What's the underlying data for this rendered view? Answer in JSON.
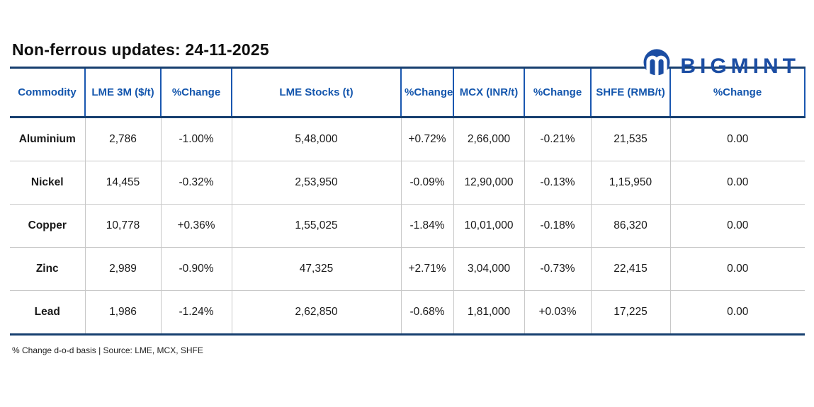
{
  "logo": {
    "text": "BIGMINT"
  },
  "title": "Non-ferrous updates: 24-11-2025",
  "table": {
    "headers": [
      "Commodity",
      "LME 3M ($/t)",
      "%Change",
      "LME Stocks (t)",
      "%Change",
      "MCX (INR/t)",
      "%Change",
      "SHFE (RMB/t)",
      "%Change"
    ],
    "rows": [
      {
        "commodity": "Aluminium",
        "cells": [
          {
            "text": "2,786",
            "tone": "plain"
          },
          {
            "text": "-1.00%",
            "tone": "neg"
          },
          {
            "text": "5,48,000",
            "tone": "plain"
          },
          {
            "text": "+0.72%",
            "tone": "pos"
          },
          {
            "text": "2,66,000",
            "tone": "plain"
          },
          {
            "text": "-0.21%",
            "tone": "neg"
          },
          {
            "text": "21,535",
            "tone": "plain"
          },
          {
            "text": "0.00",
            "tone": "flat"
          }
        ]
      },
      {
        "commodity": "Nickel",
        "cells": [
          {
            "text": "14,455",
            "tone": "plain"
          },
          {
            "text": "-0.32%",
            "tone": "neg"
          },
          {
            "text": "2,53,950",
            "tone": "plain"
          },
          {
            "text": "-0.09%",
            "tone": "neg"
          },
          {
            "text": "12,90,000",
            "tone": "plain"
          },
          {
            "text": "-0.13%",
            "tone": "neg"
          },
          {
            "text": "1,15,950",
            "tone": "plain"
          },
          {
            "text": "0.00",
            "tone": "flat"
          }
        ]
      },
      {
        "commodity": "Copper",
        "cells": [
          {
            "text": "10,778",
            "tone": "plain"
          },
          {
            "text": "+0.36%",
            "tone": "pos"
          },
          {
            "text": "1,55,025",
            "tone": "plain"
          },
          {
            "text": "-1.84%",
            "tone": "neg"
          },
          {
            "text": "10,01,000",
            "tone": "plain"
          },
          {
            "text": "-0.18%",
            "tone": "neg"
          },
          {
            "text": "86,320",
            "tone": "plain"
          },
          {
            "text": "0.00",
            "tone": "flat"
          }
        ]
      },
      {
        "commodity": "Zinc",
        "cells": [
          {
            "text": "2,989",
            "tone": "plain"
          },
          {
            "text": "-0.90%",
            "tone": "neg"
          },
          {
            "text": "47,325",
            "tone": "plain"
          },
          {
            "text": "+2.71%",
            "tone": "pos"
          },
          {
            "text": "3,04,000",
            "tone": "plain"
          },
          {
            "text": "-0.73%",
            "tone": "neg"
          },
          {
            "text": "22,415",
            "tone": "plain"
          },
          {
            "text": "0.00",
            "tone": "flat"
          }
        ]
      },
      {
        "commodity": "Lead",
        "cells": [
          {
            "text": "1,986",
            "tone": "plain"
          },
          {
            "text": "-1.24%",
            "tone": "neg"
          },
          {
            "text": "2,62,850",
            "tone": "plain"
          },
          {
            "text": "-0.68%",
            "tone": "neg"
          },
          {
            "text": "1,81,000",
            "tone": "plain"
          },
          {
            "text": "+0.03%",
            "tone": "pos"
          },
          {
            "text": "17,225",
            "tone": "plain"
          },
          {
            "text": "0.00",
            "tone": "flat"
          }
        ]
      }
    ]
  },
  "footnote": "% Change d-o-d basis | Source: LME, MCX, SHFE",
  "colors": {
    "border_dark": "#173F6F",
    "divider_blue": "#1A57B0",
    "header_text": "#1456AD",
    "logo_blue": "#1B4DA3",
    "pos_green": "#17A85F",
    "neg_red": "#F82C35",
    "grid_gray": "#C8C8C8",
    "text_dark": "#1A1A1A"
  },
  "chart_data": {
    "type": "table",
    "title": "Non-ferrous updates: 24-11-2025",
    "columns": [
      "Commodity",
      "LME 3M ($/t)",
      "%Change",
      "LME Stocks (t)",
      "%Change",
      "MCX (INR/t)",
      "%Change",
      "SHFE (RMB/t)",
      "%Change"
    ],
    "rows": [
      [
        "Aluminium",
        "2,786",
        "-1.00%",
        "5,48,000",
        "+0.72%",
        "2,66,000",
        "-0.21%",
        "21,535",
        "0.00"
      ],
      [
        "Nickel",
        "14,455",
        "-0.32%",
        "2,53,950",
        "-0.09%",
        "12,90,000",
        "-0.13%",
        "1,15,950",
        "0.00"
      ],
      [
        "Copper",
        "10,778",
        "+0.36%",
        "1,55,025",
        "-1.84%",
        "10,01,000",
        "-0.18%",
        "86,320",
        "0.00"
      ],
      [
        "Zinc",
        "2,989",
        "-0.90%",
        "47,325",
        "+2.71%",
        "3,04,000",
        "-0.73%",
        "22,415",
        "0.00"
      ],
      [
        "Lead",
        "1,986",
        "-1.24%",
        "2,62,850",
        "-0.68%",
        "1,81,000",
        "+0.03%",
        "17,225",
        "0.00"
      ]
    ],
    "note": "% Change d-o-d basis | Source: LME, MCX, SHFE"
  }
}
